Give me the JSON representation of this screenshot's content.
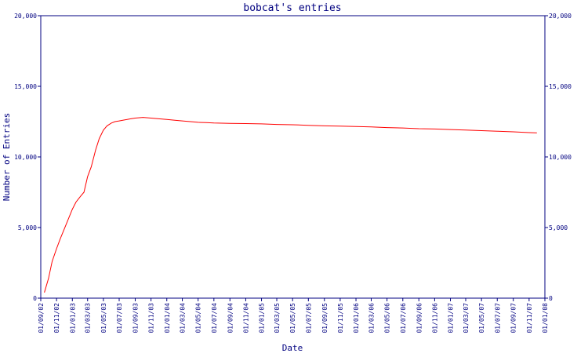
{
  "chart_data": {
    "type": "line",
    "title": "bobcat's entries",
    "xlabel": "Date",
    "ylabel": "Number of Entries",
    "ylim": [
      0,
      20000
    ],
    "yticks": [
      {
        "value": 0,
        "label": "0"
      },
      {
        "value": 5000,
        "label": "5,000"
      },
      {
        "value": 10000,
        "label": "10,000"
      },
      {
        "value": 15000,
        "label": "15,000"
      },
      {
        "value": 20000,
        "label": "20,000"
      }
    ],
    "xtick_labels": [
      "01/09/02",
      "01/11/02",
      "01/01/03",
      "01/03/03",
      "01/05/03",
      "01/07/03",
      "01/09/03",
      "01/11/03",
      "01/01/04",
      "01/03/04",
      "01/05/04",
      "01/07/04",
      "01/09/04",
      "01/11/04",
      "01/01/05",
      "01/03/05",
      "01/05/05",
      "01/07/05",
      "01/09/05",
      "01/11/05",
      "01/01/06",
      "01/03/06",
      "01/05/06",
      "01/07/06",
      "01/09/06",
      "01/11/06",
      "01/01/07",
      "01/03/07",
      "01/05/07",
      "01/07/07",
      "01/09/07",
      "01/11/07",
      "01/01/08"
    ],
    "series": [
      {
        "color": "#ff0000",
        "x": [
          "2002-09-15",
          "2002-10-01",
          "2002-10-15",
          "2002-11-01",
          "2002-11-15",
          "2002-12-01",
          "2003-01-01",
          "2003-01-15",
          "2003-02-01",
          "2003-02-15",
          "2003-03-01",
          "2003-03-15",
          "2003-04-01",
          "2003-04-15",
          "2003-05-01",
          "2003-05-15",
          "2003-06-01",
          "2003-06-15",
          "2003-07-01",
          "2003-07-15",
          "2003-08-01",
          "2003-08-15",
          "2003-09-01",
          "2003-10-01",
          "2003-11-01",
          "2003-12-01",
          "2004-01-01",
          "2004-02-01",
          "2004-03-01",
          "2004-04-01",
          "2004-05-01",
          "2004-06-01",
          "2004-07-01",
          "2004-09-01",
          "2004-11-01",
          "2005-01-01",
          "2005-03-01",
          "2005-05-01",
          "2005-07-01",
          "2005-09-01",
          "2005-11-01",
          "2006-01-01",
          "2006-03-01",
          "2006-05-01",
          "2006-07-01",
          "2006-09-01",
          "2006-11-01",
          "2007-01-01",
          "2007-03-01",
          "2007-05-01",
          "2007-07-01",
          "2007-09-01",
          "2007-11-01",
          "2007-12-01"
        ],
        "y": [
          400,
          1400,
          2600,
          3500,
          4200,
          4900,
          6300,
          6800,
          7200,
          7500,
          8600,
          9300,
          10500,
          11300,
          11900,
          12200,
          12400,
          12500,
          12550,
          12600,
          12650,
          12700,
          12750,
          12800,
          12750,
          12700,
          12650,
          12600,
          12550,
          12500,
          12450,
          12430,
          12400,
          12380,
          12360,
          12340,
          12300,
          12280,
          12240,
          12200,
          12180,
          12150,
          12120,
          12080,
          12050,
          12000,
          11980,
          11940,
          11900,
          11860,
          11820,
          11780,
          11720,
          11700
        ]
      }
    ],
    "grid": false
  }
}
